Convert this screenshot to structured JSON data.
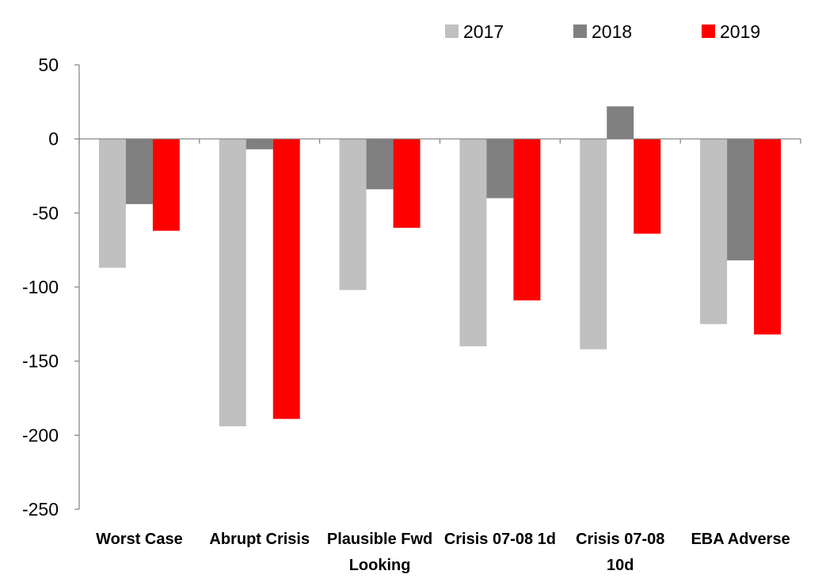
{
  "chart_data": {
    "type": "bar",
    "title": "",
    "xlabel": "",
    "ylabel": "",
    "ylim": [
      -250,
      50
    ],
    "yticks": [
      50,
      0,
      -50,
      -100,
      -150,
      -200,
      -250
    ],
    "grid": false,
    "legend_position": "top-right",
    "categories": [
      [
        "Worst Case"
      ],
      [
        "Abrupt Crisis"
      ],
      [
        "Plausible Fwd",
        "Looking"
      ],
      [
        "Crisis 07-08 1d"
      ],
      [
        "Crisis 07-08",
        "10d"
      ],
      [
        "EBA Adverse"
      ]
    ],
    "series": [
      {
        "name": "2017",
        "color": "#c0c0c0",
        "values": [
          -87,
          -194,
          -102,
          -140,
          -142,
          -125
        ]
      },
      {
        "name": "2018",
        "color": "#808080",
        "values": [
          -44,
          -7,
          -34,
          -40,
          22,
          -82
        ]
      },
      {
        "name": "2019",
        "color": "#ff0000",
        "values": [
          -62,
          -189,
          -60,
          -109,
          -64,
          -132
        ]
      }
    ]
  }
}
